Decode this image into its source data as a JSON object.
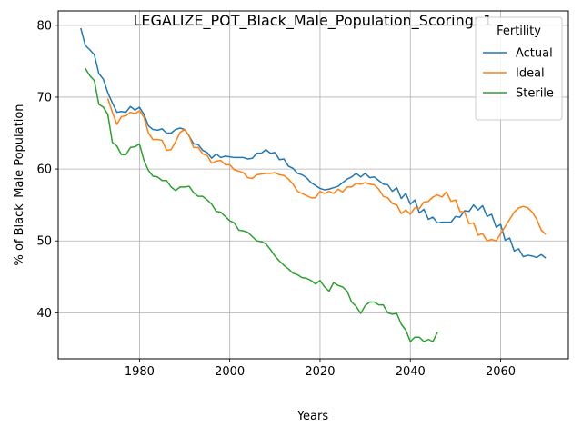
{
  "chart_data": {
    "type": "line",
    "title": "LEGALIZE_POT_Black_Male_Population_Scoring: 1",
    "xlabel": "Years",
    "ylabel": "% of Black_Male Population",
    "xlim": [
      1962,
      2075
    ],
    "ylim": [
      33.6,
      82
    ],
    "xticks": [
      1980,
      2000,
      2020,
      2040,
      2060
    ],
    "yticks": [
      40,
      50,
      60,
      70,
      80
    ],
    "grid": true,
    "legend": {
      "title": "Fertility",
      "placement": "top-right"
    },
    "series": [
      {
        "name": "Actual",
        "color": "#1f77b4",
        "x": [
          1967,
          1968,
          1969,
          1970,
          1971,
          1972,
          1973,
          1974,
          1975,
          1976,
          1977,
          1978,
          1979,
          1980,
          1981,
          1982,
          1983,
          1984,
          1985,
          1986,
          1987,
          1988,
          1989,
          1990,
          1991,
          1992,
          1993,
          1994,
          1995,
          1996,
          1997,
          1998,
          1999,
          2000,
          2001,
          2002,
          2003,
          2004,
          2005,
          2006,
          2007,
          2008,
          2009,
          2010,
          2011,
          2012,
          2013,
          2014,
          2015,
          2016,
          2017,
          2018,
          2019,
          2020,
          2021,
          2022,
          2023,
          2024,
          2025,
          2026,
          2027,
          2028,
          2029,
          2030,
          2031,
          2032,
          2033,
          2034,
          2035,
          2036,
          2037,
          2038,
          2039,
          2040,
          2041,
          2042,
          2043,
          2044,
          2045,
          2046,
          2047,
          2048,
          2049,
          2050,
          2051,
          2052,
          2053,
          2054,
          2055,
          2056,
          2057,
          2058,
          2059,
          2060,
          2061,
          2062,
          2063,
          2064,
          2065,
          2066,
          2067,
          2068,
          2069,
          2070
        ],
        "y": [
          79.6,
          77.2,
          76.6,
          75.9,
          73.3,
          72.5,
          70.6,
          69.2,
          67.9,
          68.0,
          67.9,
          68.7,
          68.2,
          68.6,
          67.6,
          66.0,
          65.5,
          65.4,
          65.6,
          65.0,
          65.0,
          65.5,
          65.7,
          65.5,
          64.6,
          63.5,
          63.4,
          62.6,
          62.3,
          61.5,
          62.1,
          61.6,
          61.8,
          61.7,
          61.6,
          61.6,
          61.6,
          61.4,
          61.5,
          62.2,
          62.2,
          62.7,
          62.2,
          62.3,
          61.3,
          61.4,
          60.4,
          60.1,
          59.4,
          59.2,
          58.8,
          58.1,
          57.7,
          57.3,
          57.1,
          57.2,
          57.4,
          57.6,
          58.1,
          58.6,
          58.9,
          59.4,
          58.9,
          59.4,
          58.8,
          58.9,
          58.4,
          57.9,
          57.8,
          56.9,
          57.4,
          55.9,
          56.6,
          55.1,
          55.7,
          53.9,
          54.4,
          53.0,
          53.3,
          52.5,
          52.6,
          52.6,
          52.6,
          53.4,
          53.3,
          54.2,
          54.1,
          55.0,
          54.3,
          54.9,
          53.4,
          53.7,
          51.9,
          52.3,
          50.1,
          50.4,
          48.6,
          48.9,
          47.8,
          48.0,
          47.9,
          47.7,
          48.1,
          47.6
        ]
      },
      {
        "name": "Ideal",
        "color": "#ff7f0e",
        "x": [
          1973,
          1974,
          1975,
          1976,
          1977,
          1978,
          1979,
          1980,
          1981,
          1982,
          1983,
          1984,
          1985,
          1986,
          1987,
          1988,
          1989,
          1990,
          1991,
          1992,
          1993,
          1994,
          1995,
          1996,
          1997,
          1998,
          1999,
          2000,
          2001,
          2002,
          2003,
          2004,
          2005,
          2006,
          2007,
          2008,
          2009,
          2010,
          2011,
          2012,
          2013,
          2014,
          2015,
          2016,
          2017,
          2018,
          2019,
          2020,
          2021,
          2022,
          2023,
          2024,
          2025,
          2026,
          2027,
          2028,
          2029,
          2030,
          2031,
          2032,
          2033,
          2034,
          2035,
          2036,
          2037,
          2038,
          2039,
          2040,
          2041,
          2042,
          2043,
          2044,
          2045,
          2046,
          2047,
          2048,
          2049,
          2050,
          2051,
          2052,
          2053,
          2054,
          2055,
          2056,
          2057,
          2058,
          2059,
          2060,
          2061,
          2062,
          2063,
          2064,
          2065,
          2066,
          2067,
          2068,
          2069,
          2070
        ],
        "y": [
          69.8,
          67.9,
          66.2,
          67.3,
          67.4,
          67.9,
          67.7,
          68.1,
          67.2,
          65.0,
          64.1,
          64.1,
          64.0,
          62.6,
          62.7,
          63.8,
          65.1,
          65.5,
          64.6,
          63.0,
          63.0,
          62.1,
          61.9,
          60.8,
          61.1,
          61.2,
          60.6,
          60.6,
          59.9,
          59.7,
          59.5,
          58.8,
          58.7,
          59.2,
          59.3,
          59.4,
          59.4,
          59.5,
          59.2,
          59.1,
          58.6,
          57.9,
          56.9,
          56.6,
          56.3,
          56.0,
          56.0,
          56.9,
          56.6,
          56.9,
          56.6,
          57.2,
          56.8,
          57.5,
          57.5,
          58.0,
          57.9,
          58.1,
          57.9,
          57.8,
          57.2,
          56.2,
          56.0,
          55.2,
          55.0,
          53.8,
          54.3,
          53.7,
          54.6,
          54.5,
          55.4,
          55.5,
          56.1,
          56.4,
          56.1,
          56.8,
          55.5,
          55.7,
          54.1,
          54.0,
          52.4,
          52.5,
          50.8,
          51.0,
          50.0,
          50.2,
          50.0,
          51.0,
          52.0,
          53.0,
          54.0,
          54.6,
          54.8,
          54.6,
          54.0,
          53.0,
          51.5,
          50.9
        ]
      },
      {
        "name": "Sterile",
        "color": "#2ca02c",
        "x": [
          1968,
          1969,
          1970,
          1971,
          1972,
          1973,
          1974,
          1975,
          1976,
          1977,
          1978,
          1979,
          1980,
          1981,
          1982,
          1983,
          1984,
          1985,
          1986,
          1987,
          1988,
          1989,
          1990,
          1991,
          1992,
          1993,
          1994,
          1995,
          1996,
          1997,
          1998,
          1999,
          2000,
          2001,
          2002,
          2003,
          2004,
          2005,
          2006,
          2007,
          2008,
          2009,
          2010,
          2011,
          2012,
          2013,
          2014,
          2015,
          2016,
          2017,
          2018,
          2019,
          2020,
          2021,
          2022,
          2023,
          2024,
          2025,
          2026,
          2027,
          2028,
          2029,
          2030,
          2031,
          2032,
          2033,
          2034,
          2035,
          2036,
          2037,
          2038,
          2039,
          2040,
          2041,
          2042,
          2043,
          2044,
          2045,
          2046
        ],
        "y": [
          74.0,
          73.0,
          72.3,
          69.0,
          68.6,
          67.6,
          63.7,
          63.2,
          62.0,
          62.0,
          63.0,
          63.1,
          63.5,
          61.2,
          59.8,
          59.0,
          58.9,
          58.4,
          58.4,
          57.5,
          57.0,
          57.5,
          57.5,
          57.6,
          56.7,
          56.2,
          56.2,
          55.7,
          55.1,
          54.1,
          54.0,
          53.4,
          52.8,
          52.5,
          51.5,
          51.4,
          51.2,
          50.6,
          50.0,
          49.9,
          49.6,
          48.8,
          47.9,
          47.2,
          46.6,
          46.1,
          45.5,
          45.3,
          44.9,
          44.8,
          44.5,
          44.0,
          44.5,
          43.6,
          43.0,
          44.2,
          43.8,
          43.6,
          43.0,
          41.5,
          40.9,
          39.9,
          41.0,
          41.5,
          41.5,
          41.1,
          41.1,
          40.0,
          39.8,
          39.9,
          38.4,
          37.6,
          36.0,
          36.6,
          36.6,
          36.0,
          36.3,
          36.0,
          37.3
        ]
      }
    ]
  }
}
